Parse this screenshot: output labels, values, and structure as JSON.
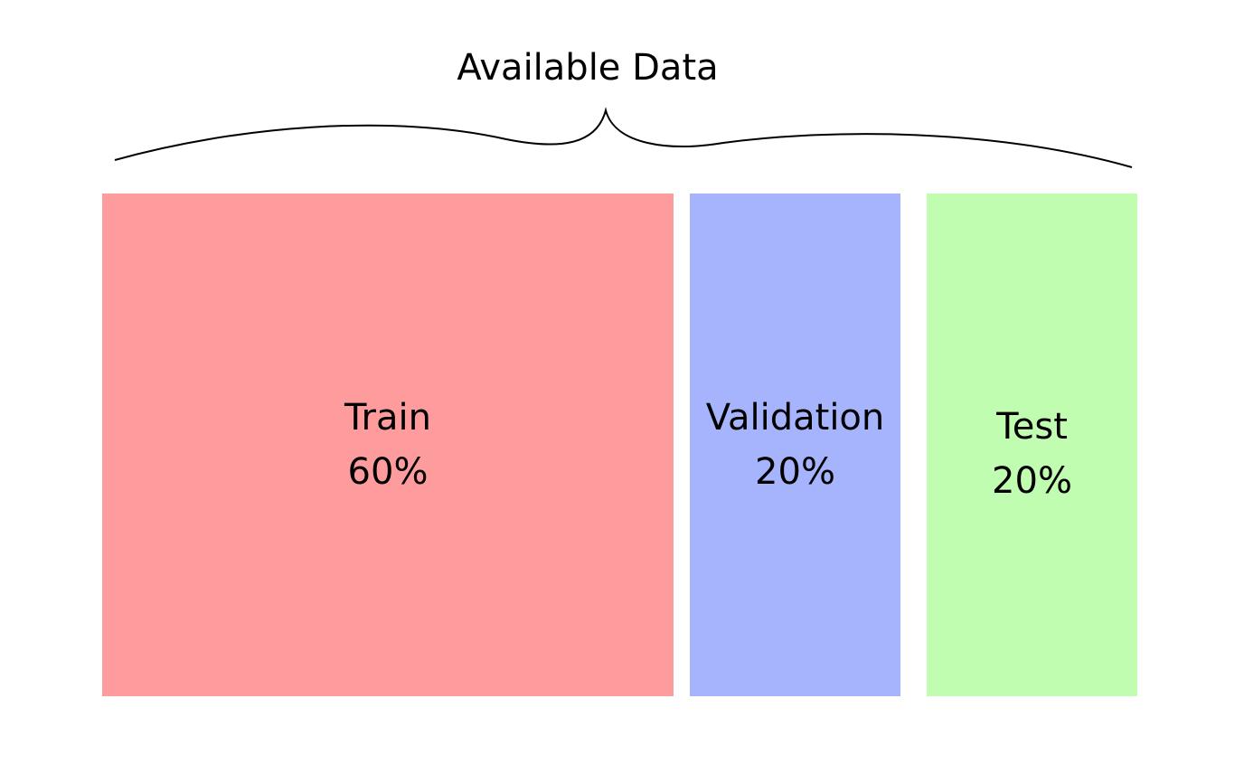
{
  "title": "Available Data",
  "blocks": [
    {
      "name": "Train",
      "percent": "60%",
      "fraction": 0.6,
      "color": "#fe9c9d"
    },
    {
      "name": "Validation",
      "percent": "20%",
      "fraction": 0.2,
      "color": "#a6b3fd"
    },
    {
      "name": "Test",
      "percent": "20%",
      "fraction": 0.2,
      "color": "#c0fdb0"
    }
  ],
  "brace_color": "#000000"
}
